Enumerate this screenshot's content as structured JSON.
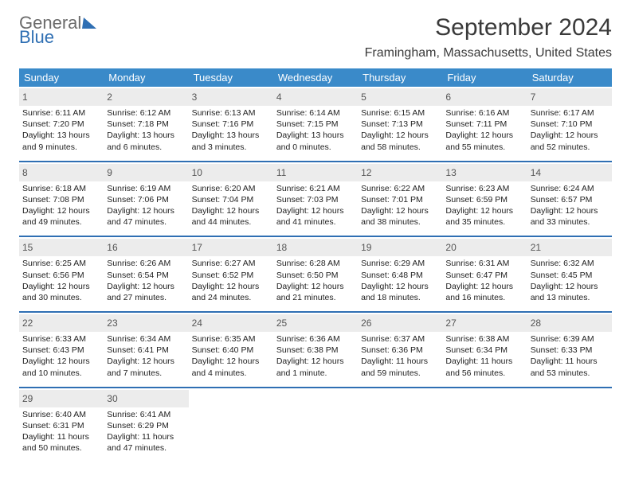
{
  "logo": {
    "word1": "General",
    "word2": "Blue"
  },
  "title": "September 2024",
  "location": "Framingham, Massachusetts, United States",
  "colors": {
    "header_bg": "#3a8ac9",
    "week_divider": "#2f6fb3",
    "daynum_bg": "#ececec",
    "text": "#3a3a3a"
  },
  "dow": [
    "Sunday",
    "Monday",
    "Tuesday",
    "Wednesday",
    "Thursday",
    "Friday",
    "Saturday"
  ],
  "weeks": [
    [
      {
        "n": "1",
        "sr": "Sunrise: 6:11 AM",
        "ss": "Sunset: 7:20 PM",
        "d1": "Daylight: 13 hours",
        "d2": "and 9 minutes."
      },
      {
        "n": "2",
        "sr": "Sunrise: 6:12 AM",
        "ss": "Sunset: 7:18 PM",
        "d1": "Daylight: 13 hours",
        "d2": "and 6 minutes."
      },
      {
        "n": "3",
        "sr": "Sunrise: 6:13 AM",
        "ss": "Sunset: 7:16 PM",
        "d1": "Daylight: 13 hours",
        "d2": "and 3 minutes."
      },
      {
        "n": "4",
        "sr": "Sunrise: 6:14 AM",
        "ss": "Sunset: 7:15 PM",
        "d1": "Daylight: 13 hours",
        "d2": "and 0 minutes."
      },
      {
        "n": "5",
        "sr": "Sunrise: 6:15 AM",
        "ss": "Sunset: 7:13 PM",
        "d1": "Daylight: 12 hours",
        "d2": "and 58 minutes."
      },
      {
        "n": "6",
        "sr": "Sunrise: 6:16 AM",
        "ss": "Sunset: 7:11 PM",
        "d1": "Daylight: 12 hours",
        "d2": "and 55 minutes."
      },
      {
        "n": "7",
        "sr": "Sunrise: 6:17 AM",
        "ss": "Sunset: 7:10 PM",
        "d1": "Daylight: 12 hours",
        "d2": "and 52 minutes."
      }
    ],
    [
      {
        "n": "8",
        "sr": "Sunrise: 6:18 AM",
        "ss": "Sunset: 7:08 PM",
        "d1": "Daylight: 12 hours",
        "d2": "and 49 minutes."
      },
      {
        "n": "9",
        "sr": "Sunrise: 6:19 AM",
        "ss": "Sunset: 7:06 PM",
        "d1": "Daylight: 12 hours",
        "d2": "and 47 minutes."
      },
      {
        "n": "10",
        "sr": "Sunrise: 6:20 AM",
        "ss": "Sunset: 7:04 PM",
        "d1": "Daylight: 12 hours",
        "d2": "and 44 minutes."
      },
      {
        "n": "11",
        "sr": "Sunrise: 6:21 AM",
        "ss": "Sunset: 7:03 PM",
        "d1": "Daylight: 12 hours",
        "d2": "and 41 minutes."
      },
      {
        "n": "12",
        "sr": "Sunrise: 6:22 AM",
        "ss": "Sunset: 7:01 PM",
        "d1": "Daylight: 12 hours",
        "d2": "and 38 minutes."
      },
      {
        "n": "13",
        "sr": "Sunrise: 6:23 AM",
        "ss": "Sunset: 6:59 PM",
        "d1": "Daylight: 12 hours",
        "d2": "and 35 minutes."
      },
      {
        "n": "14",
        "sr": "Sunrise: 6:24 AM",
        "ss": "Sunset: 6:57 PM",
        "d1": "Daylight: 12 hours",
        "d2": "and 33 minutes."
      }
    ],
    [
      {
        "n": "15",
        "sr": "Sunrise: 6:25 AM",
        "ss": "Sunset: 6:56 PM",
        "d1": "Daylight: 12 hours",
        "d2": "and 30 minutes."
      },
      {
        "n": "16",
        "sr": "Sunrise: 6:26 AM",
        "ss": "Sunset: 6:54 PM",
        "d1": "Daylight: 12 hours",
        "d2": "and 27 minutes."
      },
      {
        "n": "17",
        "sr": "Sunrise: 6:27 AM",
        "ss": "Sunset: 6:52 PM",
        "d1": "Daylight: 12 hours",
        "d2": "and 24 minutes."
      },
      {
        "n": "18",
        "sr": "Sunrise: 6:28 AM",
        "ss": "Sunset: 6:50 PM",
        "d1": "Daylight: 12 hours",
        "d2": "and 21 minutes."
      },
      {
        "n": "19",
        "sr": "Sunrise: 6:29 AM",
        "ss": "Sunset: 6:48 PM",
        "d1": "Daylight: 12 hours",
        "d2": "and 18 minutes."
      },
      {
        "n": "20",
        "sr": "Sunrise: 6:31 AM",
        "ss": "Sunset: 6:47 PM",
        "d1": "Daylight: 12 hours",
        "d2": "and 16 minutes."
      },
      {
        "n": "21",
        "sr": "Sunrise: 6:32 AM",
        "ss": "Sunset: 6:45 PM",
        "d1": "Daylight: 12 hours",
        "d2": "and 13 minutes."
      }
    ],
    [
      {
        "n": "22",
        "sr": "Sunrise: 6:33 AM",
        "ss": "Sunset: 6:43 PM",
        "d1": "Daylight: 12 hours",
        "d2": "and 10 minutes."
      },
      {
        "n": "23",
        "sr": "Sunrise: 6:34 AM",
        "ss": "Sunset: 6:41 PM",
        "d1": "Daylight: 12 hours",
        "d2": "and 7 minutes."
      },
      {
        "n": "24",
        "sr": "Sunrise: 6:35 AM",
        "ss": "Sunset: 6:40 PM",
        "d1": "Daylight: 12 hours",
        "d2": "and 4 minutes."
      },
      {
        "n": "25",
        "sr": "Sunrise: 6:36 AM",
        "ss": "Sunset: 6:38 PM",
        "d1": "Daylight: 12 hours",
        "d2": "and 1 minute."
      },
      {
        "n": "26",
        "sr": "Sunrise: 6:37 AM",
        "ss": "Sunset: 6:36 PM",
        "d1": "Daylight: 11 hours",
        "d2": "and 59 minutes."
      },
      {
        "n": "27",
        "sr": "Sunrise: 6:38 AM",
        "ss": "Sunset: 6:34 PM",
        "d1": "Daylight: 11 hours",
        "d2": "and 56 minutes."
      },
      {
        "n": "28",
        "sr": "Sunrise: 6:39 AM",
        "ss": "Sunset: 6:33 PM",
        "d1": "Daylight: 11 hours",
        "d2": "and 53 minutes."
      }
    ],
    [
      {
        "n": "29",
        "sr": "Sunrise: 6:40 AM",
        "ss": "Sunset: 6:31 PM",
        "d1": "Daylight: 11 hours",
        "d2": "and 50 minutes."
      },
      {
        "n": "30",
        "sr": "Sunrise: 6:41 AM",
        "ss": "Sunset: 6:29 PM",
        "d1": "Daylight: 11 hours",
        "d2": "and 47 minutes."
      },
      null,
      null,
      null,
      null,
      null
    ]
  ]
}
